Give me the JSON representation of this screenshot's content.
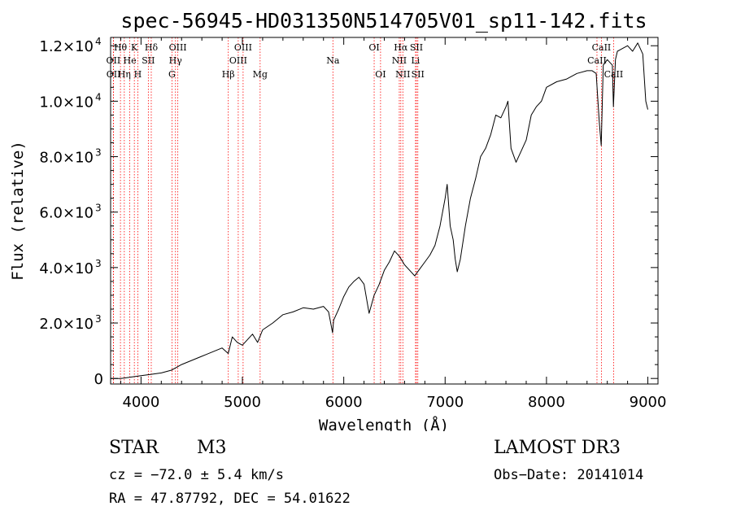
{
  "chart_data": {
    "type": "line",
    "title": "spec-56945-HD031350N514705V01_sp11-142.fits",
    "xlabel": "Wavelength (Å)",
    "ylabel": "Flux (relative)",
    "xlim": [
      3700,
      9100
    ],
    "ylim": [
      -200,
      12300
    ],
    "x_ticks": [
      4000,
      5000,
      6000,
      7000,
      8000,
      9000
    ],
    "x_tick_labels": [
      "4000",
      "5000",
      "6000",
      "7000",
      "8000",
      "9000"
    ],
    "y_ticks": [
      0,
      2000,
      4000,
      6000,
      8000,
      10000,
      12000
    ],
    "y_tick_labels": [
      {
        "mant": "0",
        "exp": ""
      },
      {
        "mant": "2.0×10",
        "exp": "3"
      },
      {
        "mant": "4.0×10",
        "exp": "3"
      },
      {
        "mant": "6.0×10",
        "exp": "3"
      },
      {
        "mant": "8.0×10",
        "exp": "3"
      },
      {
        "mant": "1.0×10",
        "exp": "4"
      },
      {
        "mant": "1.2×10",
        "exp": "4"
      }
    ],
    "series": [
      {
        "name": "spectrum",
        "x": [
          3700,
          3800,
          3900,
          4000,
          4100,
          4200,
          4300,
          4350,
          4400,
          4500,
          4600,
          4700,
          4800,
          4860,
          4900,
          4950,
          5000,
          5100,
          5150,
          5200,
          5300,
          5400,
          5500,
          5600,
          5700,
          5800,
          5850,
          5890,
          5900,
          5950,
          6000,
          6050,
          6100,
          6150,
          6200,
          6250,
          6300,
          6350,
          6400,
          6450,
          6500,
          6550,
          6600,
          6650,
          6700,
          6750,
          6800,
          6850,
          6900,
          6950,
          7000,
          7020,
          7050,
          7080,
          7100,
          7120,
          7150,
          7200,
          7250,
          7300,
          7350,
          7400,
          7450,
          7500,
          7550,
          7600,
          7620,
          7650,
          7700,
          7750,
          7800,
          7850,
          7900,
          7950,
          8000,
          8100,
          8200,
          8300,
          8400,
          8450,
          8490,
          8520,
          8540,
          8560,
          8600,
          8650,
          8660,
          8680,
          8700,
          8750,
          8800,
          8850,
          8900,
          8950,
          8980,
          9000
        ],
        "y": [
          0,
          0,
          50,
          100,
          150,
          200,
          300,
          400,
          500,
          650,
          800,
          950,
          1100,
          900,
          1500,
          1300,
          1200,
          1600,
          1300,
          1750,
          2000,
          2300,
          2400,
          2550,
          2500,
          2600,
          2400,
          1650,
          2100,
          2500,
          2950,
          3300,
          3500,
          3650,
          3400,
          2350,
          3000,
          3400,
          3900,
          4200,
          4600,
          4400,
          4100,
          3900,
          3700,
          3950,
          4200,
          4450,
          4800,
          5500,
          6500,
          7000,
          5500,
          5000,
          4300,
          3850,
          4300,
          5500,
          6500,
          7200,
          8000,
          8300,
          8800,
          9500,
          9400,
          9800,
          10000,
          8300,
          7800,
          8200,
          8600,
          9500,
          9800,
          10000,
          10500,
          10700,
          10800,
          11000,
          11100,
          11100,
          11000,
          9300,
          8400,
          11300,
          11500,
          11300,
          9800,
          11500,
          11800,
          11900,
          12000,
          11800,
          12100,
          11700,
          10000,
          9700
        ]
      }
    ],
    "line_color": "#000000",
    "marker_color": "#ff0000",
    "emission_lines": [
      {
        "label": "Hθ",
        "x": 3797,
        "row": 0
      },
      {
        "label": "K",
        "x": 3934,
        "row": 0
      },
      {
        "label": "Hδ",
        "x": 4101,
        "row": 0
      },
      {
        "label": "OIII",
        "x": 4363,
        "row": 0
      },
      {
        "label": "OIII",
        "x": 5007,
        "row": 0
      },
      {
        "label": "OI",
        "x": 6300,
        "row": 0
      },
      {
        "label": "Hα",
        "x": 6563,
        "row": 0
      },
      {
        "label": "SII",
        "x": 6717,
        "row": 0
      },
      {
        "label": "CaII",
        "x": 8542,
        "row": 0
      },
      {
        "label": "OII",
        "x": 3727,
        "row": 1
      },
      {
        "label": "He",
        "x": 3889,
        "row": 1
      },
      {
        "label": "SII",
        "x": 4072,
        "row": 1
      },
      {
        "label": "Hγ",
        "x": 4340,
        "row": 1
      },
      {
        "label": "OIII",
        "x": 4959,
        "row": 1
      },
      {
        "label": "Na",
        "x": 5893,
        "row": 1
      },
      {
        "label": "NII",
        "x": 6548,
        "row": 1
      },
      {
        "label": "Li",
        "x": 6708,
        "row": 1
      },
      {
        "label": "CaII",
        "x": 8498,
        "row": 1
      },
      {
        "label": "OII",
        "x": 3729,
        "row": 2
      },
      {
        "label": "Hη",
        "x": 3835,
        "row": 2
      },
      {
        "label": "H",
        "x": 3968,
        "row": 2
      },
      {
        "label": "G",
        "x": 4305,
        "row": 2
      },
      {
        "label": "Hβ",
        "x": 4861,
        "row": 2
      },
      {
        "label": "Mg",
        "x": 5175,
        "row": 2
      },
      {
        "label": "OI",
        "x": 6363,
        "row": 2
      },
      {
        "label": "NII",
        "x": 6583,
        "row": 2
      },
      {
        "label": "SII",
        "x": 6731,
        "row": 2
      },
      {
        "label": "CaII",
        "x": 8662,
        "row": 2
      }
    ]
  },
  "info": {
    "star_class": "STAR",
    "star_subclass": "M3",
    "survey": "LAMOST DR3",
    "cz": "cz = −72.0 ± 5.4 km/s",
    "obs_date": "Obs−Date: 20141014",
    "radec": "RA =  47.87792, DEC =  54.01622"
  }
}
